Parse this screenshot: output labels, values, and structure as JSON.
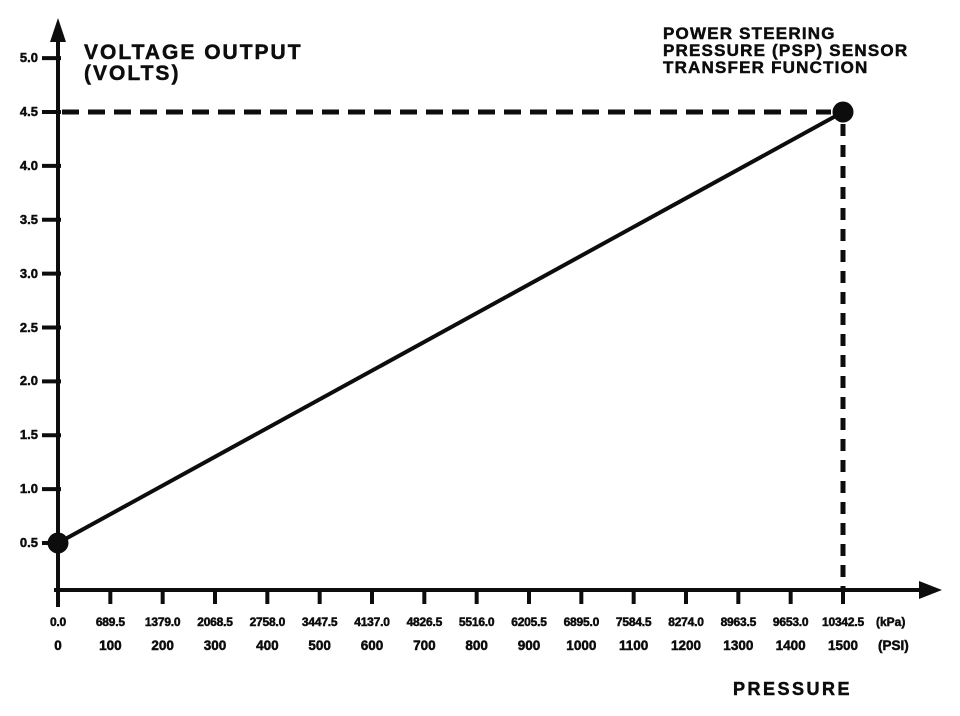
{
  "labels": {
    "y_axis_title_line1": "VOLTAGE OUTPUT",
    "y_axis_title_line2": "(VOLTS)",
    "title_line1": "POWER STEERING",
    "title_line2": "PRESSURE (PSP) SENSOR",
    "title_line3": "TRANSFER FUNCTION",
    "x_axis_title": "PRESSURE"
  },
  "colors": {
    "ink": "#0d0d0d",
    "background": "#ffffff"
  },
  "chart_data": {
    "type": "line",
    "title": "POWER STEERING PRESSURE (PSP) SENSOR TRANSFER FUNCTION",
    "xlabel": "PRESSURE",
    "ylabel": "VOLTAGE OUTPUT (VOLTS)",
    "grid": false,
    "legend": false,
    "x_axis": {
      "units": [
        "kPa",
        "PSI"
      ],
      "unit_labels": [
        "(kPa)",
        "(PSI)"
      ],
      "ticks_psi": [
        0,
        100,
        200,
        300,
        400,
        500,
        600,
        700,
        800,
        900,
        1000,
        1100,
        1200,
        1300,
        1400,
        1500
      ],
      "ticks_kpa": [
        0.0,
        689.5,
        1379.0,
        2068.5,
        2758.0,
        3447.5,
        4137.0,
        4826.5,
        5516.0,
        6205.5,
        6895.0,
        7584.5,
        8274.0,
        8963.5,
        9653.0,
        10342.5
      ],
      "tick_labels_kpa": [
        "0.0",
        "689.5",
        "1379.0",
        "2068.5",
        "2758.0",
        "3447.5",
        "4137.0",
        "4826.5",
        "5516.0",
        "6205.5",
        "6895.0",
        "7584.5",
        "8274.0",
        "8963.5",
        "9653.0",
        "10342.5"
      ],
      "tick_labels_psi": [
        "0",
        "100",
        "200",
        "300",
        "400",
        "500",
        "600",
        "700",
        "800",
        "900",
        "1000",
        "1100",
        "1200",
        "1300",
        "1400",
        "1500"
      ]
    },
    "y_axis": {
      "ticks": [
        5.0,
        4.5,
        4.0,
        3.5,
        3.0,
        2.5,
        2.0,
        1.5,
        1.0,
        0.5
      ],
      "tick_labels": [
        "5.0",
        "4.5",
        "4.0",
        "3.5",
        "3.0",
        "2.5",
        "2.0",
        "1.5",
        "1.0",
        "0.5"
      ],
      "range": [
        0,
        5.3
      ]
    },
    "series": [
      {
        "name": "PSP sensor transfer function",
        "style": "solid",
        "marker": "filled-circle",
        "points": [
          {
            "pressure_psi": 0,
            "pressure_kpa": 0.0,
            "voltage_v": 0.5
          },
          {
            "pressure_psi": 1500,
            "pressure_kpa": 10342.5,
            "voltage_v": 4.5
          }
        ]
      }
    ],
    "reference_lines": [
      {
        "orientation": "horizontal",
        "style": "dashed",
        "voltage_v": 4.5
      },
      {
        "orientation": "vertical",
        "style": "dashed",
        "pressure_psi": 1500
      }
    ]
  }
}
